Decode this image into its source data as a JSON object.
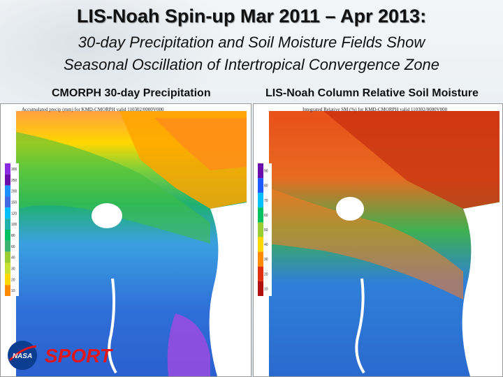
{
  "slide": {
    "title": "LIS-Noah Spin-up Mar 2011 – Apr 2013:",
    "subtitle_line1": "30-day Precipitation and Soil Moisture Fields Show",
    "subtitle_line2": "Seasonal Oscillation of Intertropical Convergence Zone"
  },
  "panels": [
    {
      "label": "CMORPH 30-day Precipitation",
      "map_title": "Accumulated precip (mm) for KMD-CMORPH valid 110302/0000V000",
      "legend_ticks": [
        "300",
        "250",
        "200",
        "150",
        "120",
        "100",
        "80",
        "60",
        "40",
        "30",
        "20",
        "10"
      ],
      "legend_colors": [
        "#8a2be2",
        "#6a0dad",
        "#1e90ff",
        "#4169e1",
        "#00bfff",
        "#20b2aa",
        "#00c060",
        "#3cb371",
        "#9acd32",
        "#c8e032",
        "#ffd700",
        "#ff8c00"
      ]
    },
    {
      "label": "LIS-Noah Column Relative Soil Moisture",
      "map_title": "Integrated Relative SM (%) for KMD-CMORPH valid 110302/0000V000",
      "legend_ticks": [
        "90",
        "80",
        "70",
        "60",
        "50",
        "40",
        "30",
        "20",
        "10"
      ],
      "legend_colors": [
        "#6a0dad",
        "#1e5aff",
        "#00bfff",
        "#00c060",
        "#9acd32",
        "#ffd700",
        "#ff8c00",
        "#e03010",
        "#b01010"
      ]
    }
  ],
  "logos": {
    "nasa": "NASA",
    "sport": "SPORT"
  },
  "colors": {
    "sport_red": "#e0161b",
    "nasa_blue": "#0b3d91"
  }
}
